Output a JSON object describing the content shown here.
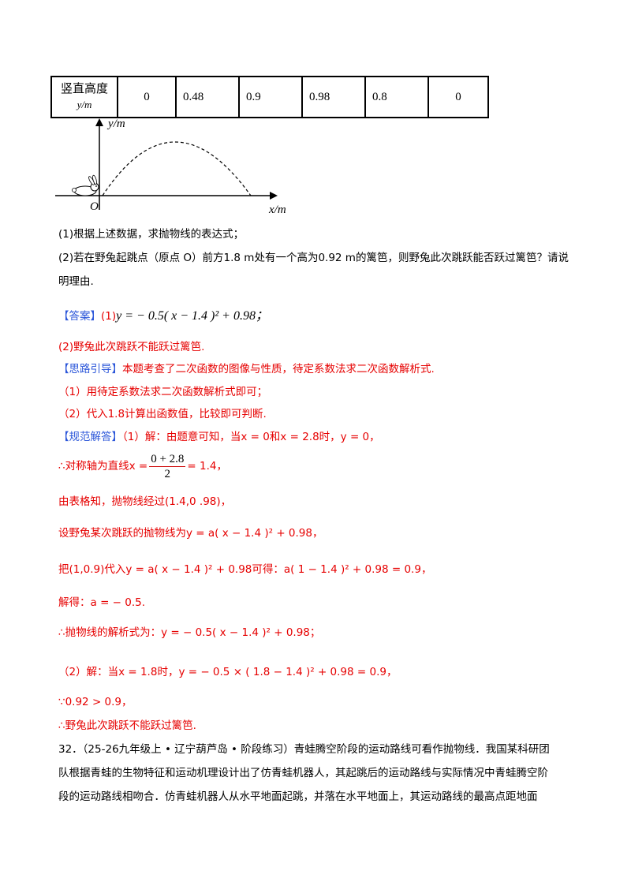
{
  "table": {
    "header_label": "竖直高度",
    "header_unit": "y/m",
    "values": [
      "0",
      "0.48",
      "0.9",
      "0.98",
      "0.8",
      "0"
    ]
  },
  "graph": {
    "y_label": "y/m",
    "x_label": "x/m",
    "origin_label": "O"
  },
  "question": {
    "q1": "(1)根据上述数据，求抛物线的表达式；",
    "q2_line1": "(2)若在野兔起跳点（原点 O）前方1.8 m处有一个高为0.92 m的篱笆，则野兔此次跳跃能否跃过篱笆？请说",
    "q2_line2": "明理由."
  },
  "answer": {
    "tag": "【答案】",
    "a1_prefix": "(1)",
    "a1_expr": "y = − 0.5( x − 1.4 )² + 0.98；",
    "a2": "(2)野兔此次跳跃不能跃过篱笆."
  },
  "hint": {
    "tag": "【思路引导】",
    "text": "本题考查了二次函数的图像与性质，待定系数法求二次函数解析式.",
    "step1": "（1）用待定系数法求二次函数解析式即可；",
    "step2": "（2）代入1.8计算出函数值，比较即可判断."
  },
  "solution": {
    "tag": "【规范解答】",
    "s1": "（1）解：由题意可知，当x = 0和x = 2.8时，y = 0，",
    "s2_prefix": "∴对称轴为直线x =",
    "s2_num": "0 + 2.8",
    "s2_den": "2",
    "s2_suffix": "= 1.4，",
    "s3": "由表格知，抛物线经过(1.4,0 .98)，",
    "s4": "设野兔某次跳跃的抛物线为y = a( x − 1.4 )² + 0.98，",
    "s5": "把(1,0.9)代入y = a( x − 1.4 )² + 0.98可得：a( 1 − 1.4 )² + 0.98 = 0.9，",
    "s6": "解得：a = − 0.5.",
    "s7": "∴抛物线的解析式为：y = − 0.5( x − 1.4 )² + 0.98；",
    "s8": "（2）解：当x = 1.8时，y = − 0.5 × ( 1.8 − 1.4 )² + 0.98 = 0.9，",
    "s9": "∵0.92 > 0.9，",
    "s10": "∴野兔此次跳跃不能跃过篱笆."
  },
  "next_problem": {
    "line1": "32．（25-26九年级上 • 辽宁葫芦岛 • 阶段练习）青蛙腾空阶段的运动路线可看作抛物线．我国某科研团",
    "line2": "队根据青蛙的生物特征和运动机理设计出了仿青蛙机器人，其起跳后的运动路线与实际情况中青蛙腾空阶",
    "line3": "段的运动路线相吻合．仿青蛙机器人从水平地面起跳，并落在水平地面上，其运动路线的最高点距地面"
  }
}
